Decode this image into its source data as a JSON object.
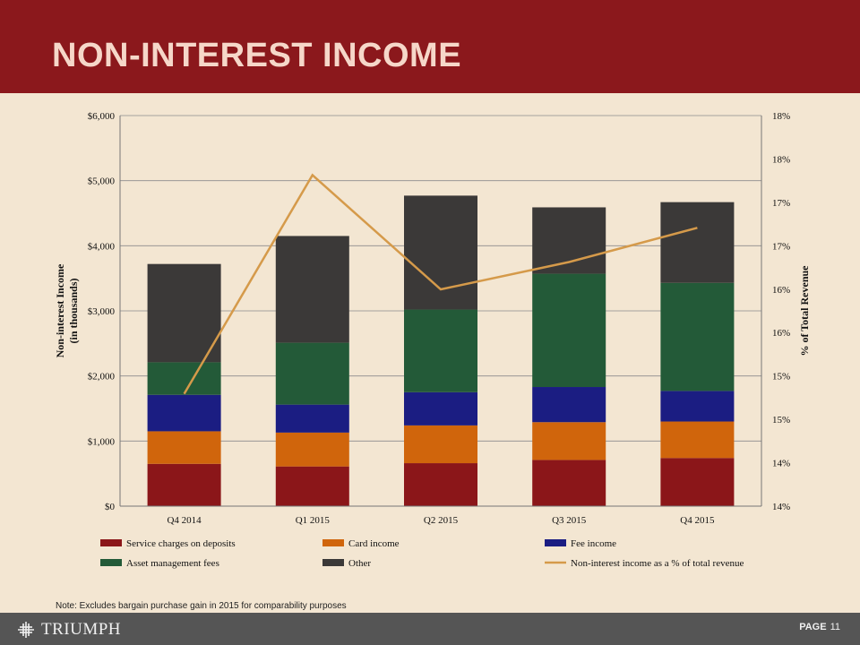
{
  "slide": {
    "title": "NON-INTEREST INCOME",
    "note": "Note: Excludes bargain purchase gain in 2015 for comparability purposes",
    "logo_text": "TRIUMPH",
    "page_label": "PAGE",
    "page_number": "11"
  },
  "colors": {
    "header": "#8b181c",
    "background": "#f3e6d2",
    "footer": "#555555"
  },
  "chart_data": {
    "type": "bar",
    "stacked": true,
    "categories": [
      "Q4 2014",
      "Q1 2015",
      "Q2 2015",
      "Q3 2015",
      "Q4 2015"
    ],
    "series": [
      {
        "name": "Service charges on deposits",
        "color": "#8b1619",
        "values": [
          650,
          610,
          660,
          710,
          740
        ]
      },
      {
        "name": "Card income",
        "color": "#d0650c",
        "values": [
          500,
          520,
          580,
          580,
          560
        ]
      },
      {
        "name": "Fee income",
        "color": "#1b1d82",
        "values": [
          560,
          430,
          510,
          540,
          470
        ]
      },
      {
        "name": "Asset management fees",
        "color": "#235a38",
        "values": [
          500,
          950,
          1270,
          1740,
          1660
        ]
      },
      {
        "name": "Other",
        "color": "#3b3938",
        "values": [
          1510,
          1640,
          1750,
          1020,
          1240
        ]
      }
    ],
    "line": {
      "name": "Non-interest income as a % of total revenue",
      "color": "#d59a4a",
      "values": [
        0.1515,
        0.1739,
        0.1622,
        0.165,
        0.1685
      ]
    },
    "ylabel": "Non-interest Income",
    "ylabel2": "(in thousands)",
    "y2label": "% of Total Revenue",
    "ylim": [
      0,
      6000
    ],
    "yticks": [
      "$0",
      "$1,000",
      "$2,000",
      "$3,000",
      "$4,000",
      "$5,000",
      "$6,000"
    ],
    "y2lim": [
      0.14,
      0.18
    ],
    "y2ticks": [
      "14%",
      "14%",
      "15%",
      "15%",
      "16%",
      "16%",
      "17%",
      "17%",
      "18%",
      "18%"
    ],
    "grid": true,
    "legend_position": "bottom"
  }
}
